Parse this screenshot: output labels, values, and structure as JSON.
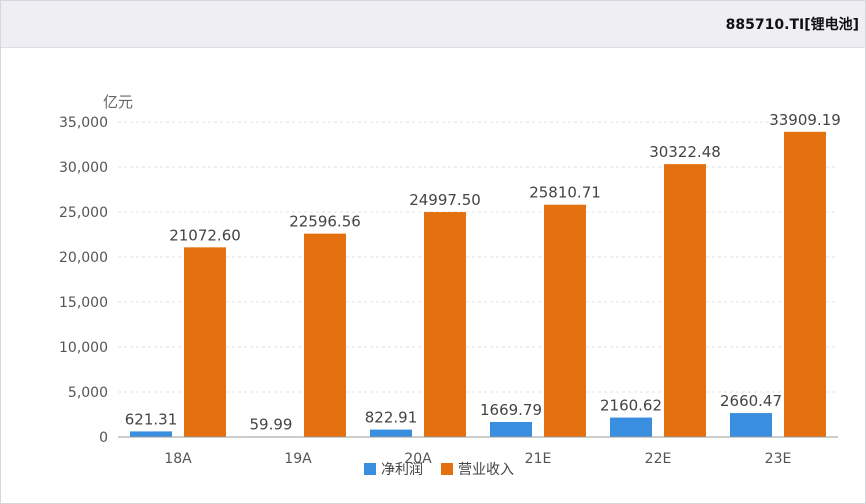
{
  "header": {
    "title": "885710.TI[锂电池]"
  },
  "chart_data": {
    "type": "bar",
    "unit_label": "亿元",
    "categories": [
      "18A",
      "19A",
      "20A",
      "21E",
      "22E",
      "23E"
    ],
    "series": [
      {
        "name": "净利润",
        "color": "#3a8ee0",
        "values": [
          621.31,
          59.99,
          822.91,
          1669.79,
          2160.62,
          2660.47
        ],
        "labels": [
          "621.31",
          "59.99",
          "822.91",
          "1669.79",
          "2160.62",
          "2660.47"
        ]
      },
      {
        "name": "营业收入",
        "color": "#e5700f",
        "values": [
          21072.6,
          22596.56,
          24997.5,
          25810.71,
          30322.48,
          33909.19
        ],
        "labels": [
          "21072.60",
          "22596.56",
          "24997.50",
          "25810.71",
          "30322.48",
          "33909.19"
        ]
      }
    ],
    "ylim": [
      0,
      35000
    ],
    "yticks": [
      0,
      5000,
      10000,
      15000,
      20000,
      25000,
      30000,
      35000
    ],
    "ytick_labels": [
      "0",
      "5,000",
      "10,000",
      "15,000",
      "20,000",
      "25,000",
      "30,000",
      "35,000"
    ],
    "grid": true,
    "legend_position": "bottom-center"
  }
}
